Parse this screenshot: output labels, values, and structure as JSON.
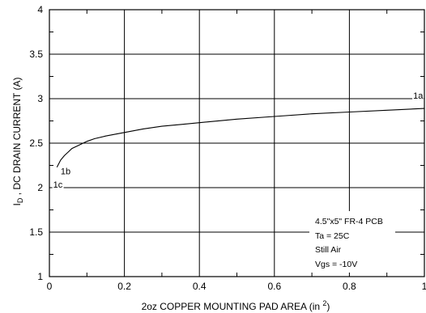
{
  "chart_data": {
    "type": "line",
    "title": "",
    "xlabel": "2oz COPPER MOUNTING PAD AREA (in ",
    "xlabel_sup": "2",
    "xlabel_end": ")",
    "ylabel_main": "I",
    "ylabel_sub": "D",
    "ylabel_rest": " , DC DRAIN CURRENT (A)",
    "xlim": [
      0,
      1
    ],
    "ylim": [
      1,
      4
    ],
    "xticks": [
      0,
      0.2,
      0.4,
      0.6,
      0.8,
      1
    ],
    "xtick_labels": [
      "0",
      "0.2",
      "0.4",
      "0.6",
      "0.8",
      "1"
    ],
    "yticks": [
      1,
      1.5,
      2,
      2.5,
      3,
      3.5,
      4
    ],
    "ytick_labels": [
      "1",
      "1.5",
      "2",
      "2.5",
      "3",
      "3.5",
      "4"
    ],
    "grid": true,
    "series": [
      {
        "x": [
          0.02,
          0.03,
          0.04,
          0.05,
          0.06,
          0.08,
          0.1,
          0.12,
          0.15,
          0.2,
          0.25,
          0.3,
          0.35,
          0.4,
          0.5,
          0.6,
          0.7,
          0.8,
          0.9,
          1.0
        ],
        "y": [
          2.23,
          2.31,
          2.36,
          2.4,
          2.44,
          2.48,
          2.52,
          2.55,
          2.58,
          2.62,
          2.66,
          2.69,
          2.71,
          2.73,
          2.77,
          2.8,
          2.83,
          2.85,
          2.87,
          2.89
        ]
      }
    ],
    "annotations": [
      {
        "text": "1a",
        "x": 0.97,
        "y": 3.0
      },
      {
        "text": "1b",
        "x": 0.03,
        "y": 2.15
      },
      {
        "text": "1c",
        "x": 0.01,
        "y": 2.0
      }
    ],
    "notes": [
      "4.5\"x5\" FR-4 PCB",
      "Ta = 25C",
      "Still Air",
      "Vgs = -10V"
    ]
  }
}
